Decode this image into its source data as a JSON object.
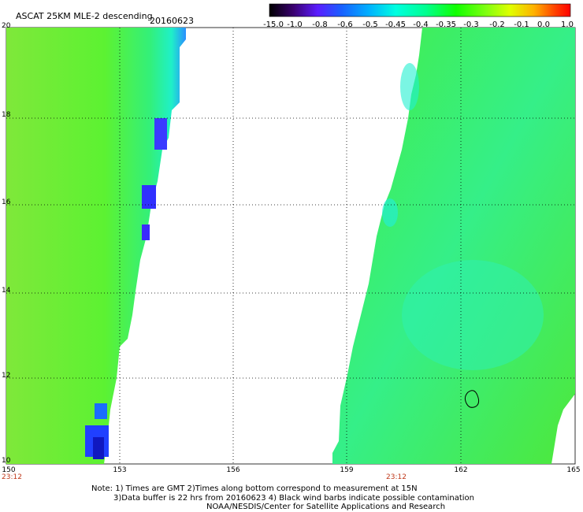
{
  "header": {
    "title": "ASCAT 25KM MLE-2 descending",
    "date": "20160623"
  },
  "colorbar": {
    "labels": [
      "-15.0",
      "-1.0",
      "-0.8",
      "-0.6",
      "-0.5",
      "-0.45",
      "-0.4",
      "-0.35",
      "-0.3",
      "-0.2",
      "-0.1",
      "0.0",
      "1.0"
    ],
    "colors": [
      "#000000",
      "#3a0070",
      "#5a1cff",
      "#1860ff",
      "#00b0ff",
      "#00ffe0",
      "#00ff90",
      "#10ff00",
      "#80ff10",
      "#e0ff00",
      "#ffb000",
      "#ff4000",
      "#ff0000"
    ]
  },
  "map": {
    "lat_labels": [
      "20",
      "18",
      "16",
      "14",
      "12",
      "10"
    ],
    "lon_labels": [
      "150",
      "153",
      "156",
      "159",
      "162",
      "165"
    ],
    "time_labels": [
      "23:12",
      "23:12"
    ]
  },
  "notes": {
    "line1": "Note: 1) Times are GMT 2)Times along bottom correspond to measurement at 15N",
    "line2": "3)Data buffer is 22 hrs from 20160623 4) Black wind barbs indicate possible contamination",
    "line3": "NOAA/NESDIS/Center for Satellite Applications and Research"
  }
}
